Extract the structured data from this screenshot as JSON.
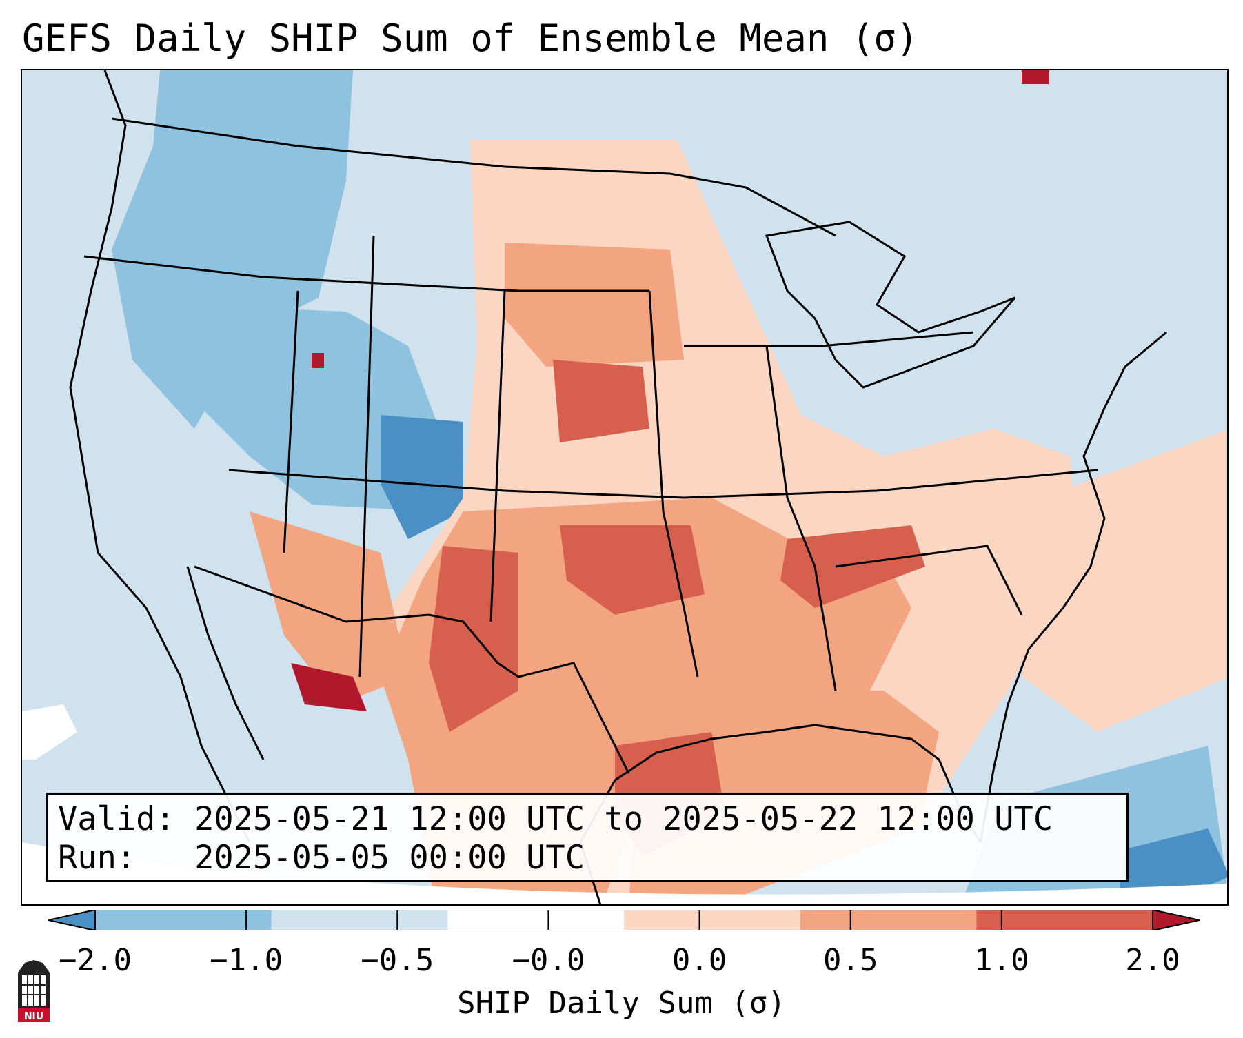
{
  "title": "GEFS Daily SHIP Sum of Ensemble Mean (σ)",
  "info": {
    "valid_label": "Valid:",
    "valid_value": "2025-05-21 12:00 UTC to 2025-05-22 12:00 UTC",
    "run_label": "Run:",
    "run_value": "2025-05-05 00:00 UTC"
  },
  "colorbar": {
    "label": "SHIP Daily Sum (σ)",
    "ticks": [
      "−2.0",
      "−1.0",
      "−0.5",
      "−0.0",
      "0.0",
      "0.5",
      "1.0",
      "2.0"
    ],
    "colors": [
      "#4a90c4",
      "#8fc2de",
      "#cfe2ee",
      "#ffffff",
      "#fbd6c3",
      "#f3a481",
      "#d6604d",
      "#b2182b"
    ]
  },
  "logo": {
    "text": "NIU"
  },
  "map": {
    "background_color": "#cfe2ee",
    "line_color": "#000000"
  }
}
